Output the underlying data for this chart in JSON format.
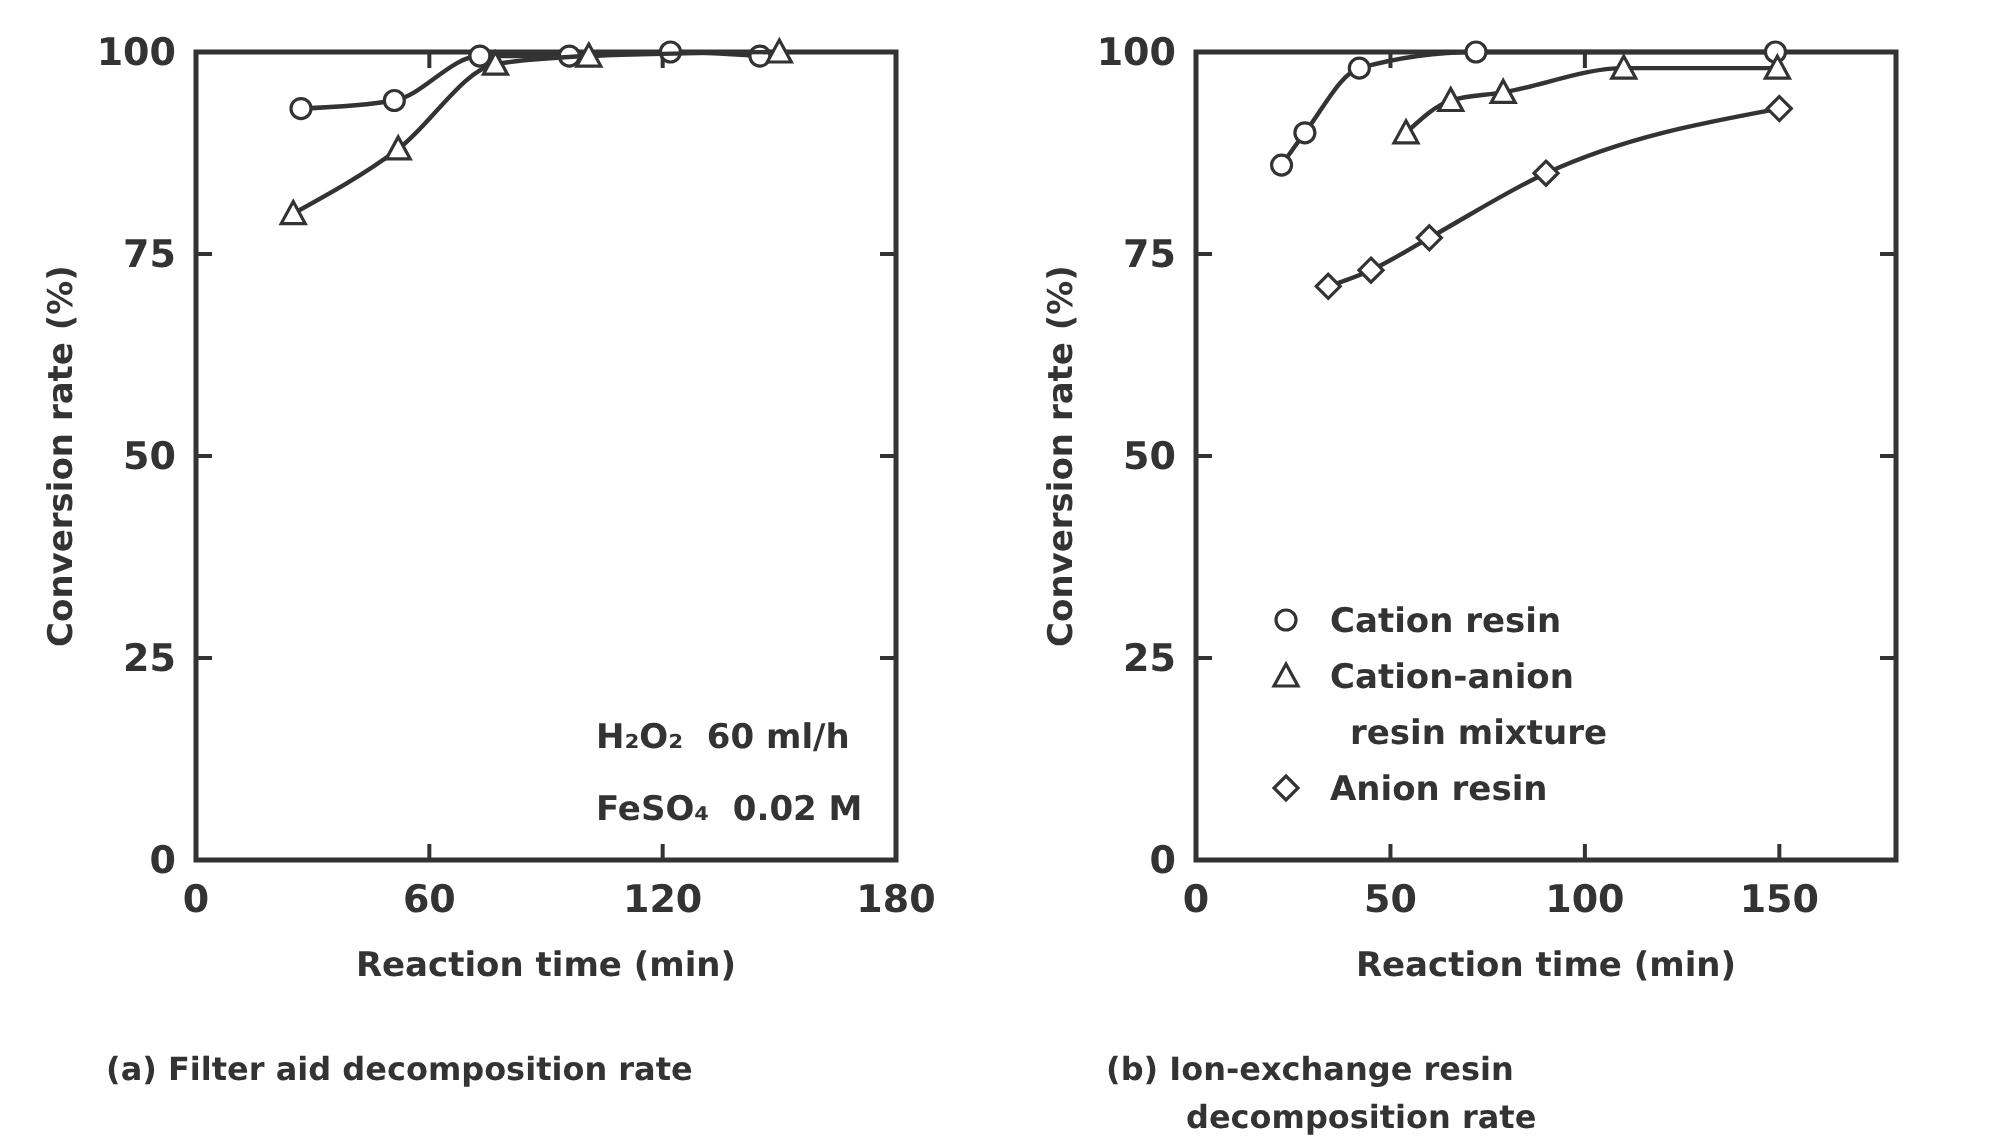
{
  "chart_data": [
    {
      "type": "line",
      "title": "(a) Filter aid decomposition rate",
      "xlabel": "Reaction time (min)",
      "ylabel": "Conversion rate (%)",
      "xlim": [
        0,
        180
      ],
      "xticks": [
        0,
        60,
        120,
        180
      ],
      "ylim": [
        0,
        100
      ],
      "yticks": [
        0,
        25,
        50,
        75,
        100
      ],
      "grid": false,
      "legend": false,
      "annotations": [
        "H₂O₂  60 ml/h",
        "FeSO₄  0.02 M"
      ],
      "series": [
        {
          "color": "#333333",
          "marker": "circle",
          "x": [
            27,
            51,
            73,
            96,
            122,
            145
          ],
          "values": [
            93,
            94,
            99.5,
            99.5,
            100,
            99.5
          ]
        },
        {
          "color": "#333333",
          "marker": "triangle",
          "x": [
            25,
            52,
            77,
            101,
            150
          ],
          "values": [
            80,
            88,
            98.5,
            99.5,
            100
          ]
        }
      ]
    },
    {
      "type": "line",
      "title": "(b) Ion-exchange resin decomposition rate",
      "xlabel": "Reaction time (min)",
      "ylabel": "Conversion rate (%)",
      "xlim": [
        0,
        180
      ],
      "xticks": [
        0,
        50,
        100,
        150
      ],
      "ylim": [
        0,
        100
      ],
      "yticks": [
        0,
        25,
        50,
        75,
        100
      ],
      "grid": false,
      "legend": "bottom left",
      "series": [
        {
          "name": "Cation resin",
          "color": "#333333",
          "marker": "circle",
          "x": [
            22,
            28,
            42,
            72,
            149
          ],
          "values": [
            86,
            90,
            98,
            100,
            100
          ]
        },
        {
          "name": "Cation-anion resin mixture",
          "color": "#333333",
          "marker": "triangle",
          "x": [
            54,
            65.5,
            79,
            110,
            149.5
          ],
          "values": [
            90,
            94,
            95,
            98,
            98
          ]
        },
        {
          "name": "Anion resin",
          "color": "#333333",
          "marker": "diamond",
          "x": [
            34,
            45,
            60,
            90,
            150
          ],
          "values": [
            71,
            73,
            77,
            85,
            93
          ]
        }
      ]
    }
  ]
}
